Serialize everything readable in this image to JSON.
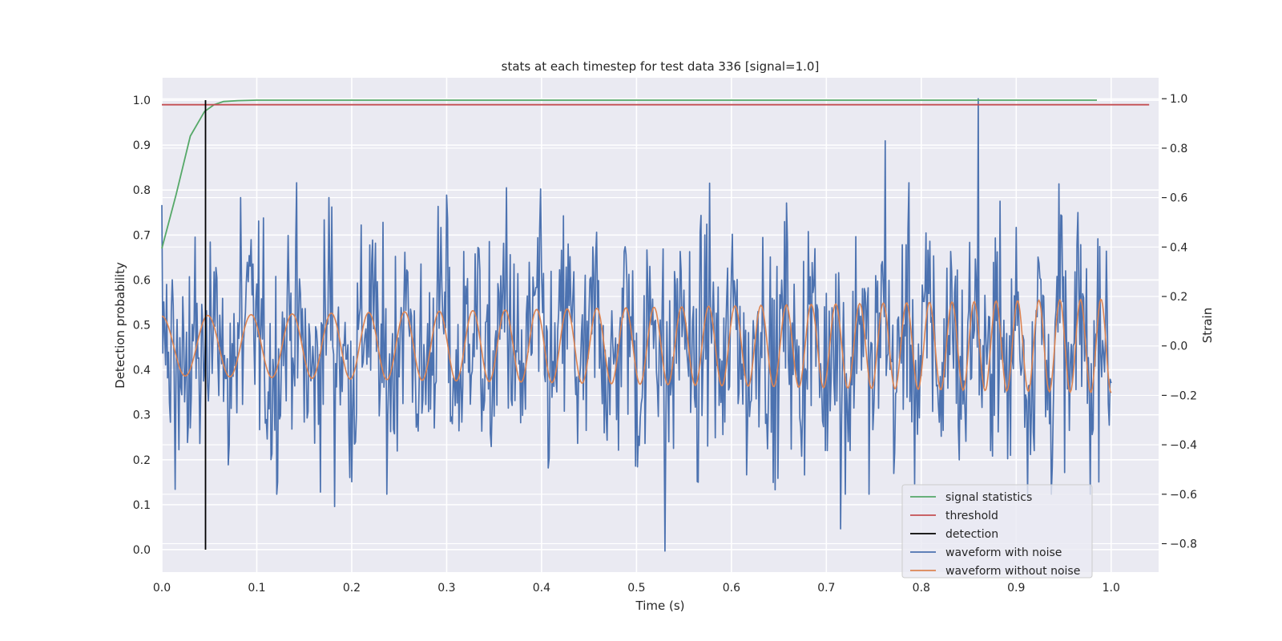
{
  "chart_data": {
    "type": "line",
    "title": "stats at each timestep for test data 336 [signal=1.0]",
    "xlabel": "Time (s)",
    "ylabel": "Detection probability",
    "ylabel_right": "Strain",
    "xlim": [
      0.0,
      1.05
    ],
    "ylim": [
      -0.05,
      1.05
    ],
    "ylim_right": [
      -0.915,
      1.085
    ],
    "x_ticks": [
      0.0,
      0.1,
      0.2,
      0.3,
      0.4,
      0.5,
      0.6,
      0.7,
      0.8,
      0.9,
      1.0
    ],
    "x_tick_labels": [
      "0.0",
      "0.1",
      "0.2",
      "0.3",
      "0.4",
      "0.5",
      "0.6",
      "0.7",
      "0.8",
      "0.9",
      "1.0"
    ],
    "y_ticks": [
      0.0,
      0.1,
      0.2,
      0.3,
      0.4,
      0.5,
      0.6,
      0.7,
      0.8,
      0.9,
      1.0
    ],
    "y_tick_labels": [
      "0.0",
      "0.1",
      "0.2",
      "0.3",
      "0.4",
      "0.5",
      "0.6",
      "0.7",
      "0.8",
      "0.9",
      "1.0"
    ],
    "y_right_ticks": [
      -0.8,
      -0.6,
      -0.4,
      -0.2,
      0.0,
      0.2,
      0.4,
      0.6,
      0.8,
      1.0
    ],
    "y_right_tick_labels": [
      "−0.8",
      "−0.6",
      "−0.4",
      "−0.2",
      "0.0",
      "0.2",
      "0.4",
      "0.6",
      "0.8",
      "1.0"
    ],
    "grid": true,
    "legend_position": "lower-right",
    "series": [
      {
        "name": "signal statistics",
        "axis": "left",
        "color": "#55a868",
        "x": [
          0.0,
          0.015,
          0.03,
          0.045,
          0.055,
          0.065,
          0.08,
          0.1,
          0.3,
          0.5,
          0.7,
          0.9,
          0.985
        ],
        "y": [
          0.67,
          0.79,
          0.92,
          0.975,
          0.99,
          0.997,
          0.999,
          1.0,
          1.0,
          1.0,
          1.0,
          1.0,
          1.0
        ]
      },
      {
        "name": "threshold",
        "axis": "left",
        "color": "#c44e52",
        "x": [
          0.0,
          1.04
        ],
        "y": [
          0.99,
          0.99
        ]
      },
      {
        "name": "detection",
        "axis": "left",
        "color": "#000000",
        "x": [
          0.046,
          0.046
        ],
        "y": [
          0.0,
          1.0
        ]
      },
      {
        "name": "waveform with noise",
        "axis": "right",
        "color": "#4c72b0",
        "noise_amplitude": 0.22,
        "extrema": [
          {
            "x": 0.0,
            "y": 0.57
          },
          {
            "x": 0.014,
            "y": -0.58
          },
          {
            "x": 0.035,
            "y": 0.44
          },
          {
            "x": 0.083,
            "y": 0.6
          },
          {
            "x": 0.176,
            "y": 0.6
          },
          {
            "x": 0.182,
            "y": -0.65
          },
          {
            "x": 0.3,
            "y": 0.61
          },
          {
            "x": 0.363,
            "y": 0.64
          },
          {
            "x": 0.53,
            "y": -0.83
          },
          {
            "x": 0.715,
            "y": -0.74
          },
          {
            "x": 0.762,
            "y": 0.83
          },
          {
            "x": 0.86,
            "y": 1.0
          }
        ]
      },
      {
        "name": "waveform without noise",
        "axis": "right",
        "color": "#dd8452",
        "amplitude_start": 0.12,
        "amplitude_end": 0.19,
        "frequency_start_hz": 20,
        "frequency_end_hz": 47,
        "offset": 0.0
      }
    ]
  },
  "legend": {
    "items": [
      {
        "label": "signal statistics",
        "color": "#55a868"
      },
      {
        "label": "threshold",
        "color": "#c44e52"
      },
      {
        "label": "detection",
        "color": "#000000"
      },
      {
        "label": "waveform with noise",
        "color": "#4c72b0"
      },
      {
        "label": "waveform without noise",
        "color": "#dd8452"
      }
    ]
  },
  "colors": {
    "plot_background": "#eaeaf2",
    "grid": "#ffffff",
    "text": "#262626"
  }
}
